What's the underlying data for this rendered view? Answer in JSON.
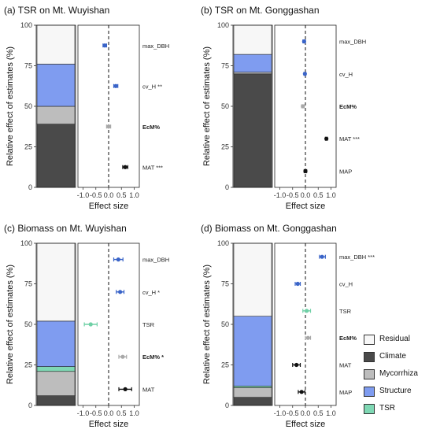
{
  "chart_data": [
    {
      "title": "(a) TSR on Mt. Wuyishan",
      "type": "stacked-bar+forest",
      "ylabel": "Relative effect of estimates (%)",
      "xlabel": "Effect size",
      "ylim": [
        0,
        100
      ],
      "yticks": [
        "0",
        "25",
        "50",
        "75",
        "100"
      ],
      "xlim": [
        -1.2,
        1.2
      ],
      "xticks": [
        "-1.0",
        "-0.5",
        "0.0",
        "0.5",
        "1.0"
      ],
      "stack": [
        {
          "group": "Climate",
          "value": 39
        },
        {
          "group": "Mycorrhiza",
          "value": 11
        },
        {
          "group": "Structure",
          "value": 26
        },
        {
          "group": "Residual",
          "value": 24
        }
      ],
      "estimates": [
        {
          "label": "max_DBH",
          "est": -0.15,
          "lo": -0.22,
          "hi": -0.08,
          "group": "Structure",
          "bold": false
        },
        {
          "label": "cv_H **",
          "est": 0.28,
          "lo": 0.2,
          "hi": 0.36,
          "group": "Structure",
          "bold": false
        },
        {
          "label": "EcM%",
          "est": 0.0,
          "lo": -0.08,
          "hi": 0.08,
          "group": "Mycorrhiza",
          "bold": true
        },
        {
          "label": "MAT ***",
          "est": 0.65,
          "lo": 0.55,
          "hi": 0.75,
          "group": "Climate",
          "bold": false
        }
      ]
    },
    {
      "title": "(b) TSR on Mt. Gonggashan",
      "type": "stacked-bar+forest",
      "ylabel": "Relative effect of estimates (%)",
      "xlabel": "Effect size",
      "ylim": [
        0,
        100
      ],
      "yticks": [
        "0",
        "25",
        "50",
        "75",
        "100"
      ],
      "xlim": [
        -1.2,
        1.2
      ],
      "xticks": [
        "-1.0",
        "-0.5",
        "0.0",
        "0.5",
        "1.0"
      ],
      "stack": [
        {
          "group": "Climate",
          "value": 70
        },
        {
          "group": "Mycorrhiza",
          "value": 1
        },
        {
          "group": "Structure",
          "value": 11
        },
        {
          "group": "Residual",
          "value": 18
        }
      ],
      "estimates": [
        {
          "label": "max_DBH",
          "est": -0.05,
          "lo": -0.1,
          "hi": 0.0,
          "group": "Structure",
          "bold": false
        },
        {
          "label": "cv_H",
          "est": -0.02,
          "lo": -0.06,
          "hi": 0.02,
          "group": "Structure",
          "bold": false
        },
        {
          "label": "EcM%",
          "est": -0.1,
          "lo": -0.15,
          "hi": -0.05,
          "group": "Mycorrhiza",
          "bold": true
        },
        {
          "label": "MAT ***",
          "est": 0.82,
          "lo": 0.78,
          "hi": 0.86,
          "group": "Climate",
          "bold": false
        },
        {
          "label": "MAP",
          "est": 0.0,
          "lo": -0.05,
          "hi": 0.05,
          "group": "Climate",
          "bold": false
        }
      ]
    },
    {
      "title": "(c) Biomass on Mt. Wuyishan",
      "type": "stacked-bar+forest",
      "ylabel": "Relative effect of estimates (%)",
      "xlabel": "Effect size",
      "ylim": [
        0,
        100
      ],
      "yticks": [
        "0",
        "25",
        "50",
        "75",
        "100"
      ],
      "xlim": [
        -1.2,
        1.2
      ],
      "xticks": [
        "-1.0",
        "-0.5",
        "0.0",
        "0.5",
        "1.0"
      ],
      "stack": [
        {
          "group": "Climate",
          "value": 6
        },
        {
          "group": "Mycorrhiza",
          "value": 15
        },
        {
          "group": "TSR",
          "value": 3
        },
        {
          "group": "Structure",
          "value": 28
        },
        {
          "group": "Residual",
          "value": 48
        }
      ],
      "estimates": [
        {
          "label": "max_DBH",
          "est": 0.38,
          "lo": 0.2,
          "hi": 0.56,
          "group": "Structure",
          "bold": false
        },
        {
          "label": "cv_H *",
          "est": 0.45,
          "lo": 0.3,
          "hi": 0.6,
          "group": "Structure",
          "bold": false
        },
        {
          "label": "TSR",
          "est": -0.7,
          "lo": -0.95,
          "hi": -0.45,
          "group": "TSR",
          "bold": false
        },
        {
          "label": "EcM% *",
          "est": 0.55,
          "lo": 0.4,
          "hi": 0.7,
          "group": "Mycorrhiza",
          "bold": true
        },
        {
          "label": "MAT",
          "est": 0.65,
          "lo": 0.4,
          "hi": 0.9,
          "group": "Climate",
          "bold": false
        }
      ]
    },
    {
      "title": "(d) Biomass on Mt. Gonggashan",
      "type": "stacked-bar+forest",
      "ylabel": "Relative effect of estimates (%)",
      "xlabel": "Effect size",
      "ylim": [
        0,
        100
      ],
      "yticks": [
        "0",
        "25",
        "50",
        "75",
        "100"
      ],
      "xlim": [
        -1.2,
        1.2
      ],
      "xticks": [
        "-1.0",
        "-0.5",
        "0.0",
        "0.5",
        "1.0"
      ],
      "stack": [
        {
          "group": "Climate",
          "value": 5
        },
        {
          "group": "Mycorrhiza",
          "value": 6
        },
        {
          "group": "TSR",
          "value": 1
        },
        {
          "group": "Structure",
          "value": 43
        },
        {
          "group": "Residual",
          "value": 45
        }
      ],
      "estimates": [
        {
          "label": "max_DBH ***",
          "est": 0.65,
          "lo": 0.55,
          "hi": 0.78,
          "group": "Structure",
          "bold": false
        },
        {
          "label": "cv_H",
          "est": -0.3,
          "lo": -0.4,
          "hi": -0.2,
          "group": "Structure",
          "bold": false
        },
        {
          "label": "TSR",
          "est": 0.05,
          "lo": -0.1,
          "hi": 0.2,
          "group": "TSR",
          "bold": false
        },
        {
          "label": "EcM%",
          "est": 0.1,
          "lo": 0.0,
          "hi": 0.2,
          "group": "Mycorrhiza",
          "bold": true
        },
        {
          "label": "MAT",
          "est": -0.35,
          "lo": -0.5,
          "hi": -0.2,
          "group": "Climate",
          "bold": false
        },
        {
          "label": "MAP",
          "est": -0.15,
          "lo": -0.28,
          "hi": -0.02,
          "group": "Climate",
          "bold": false
        }
      ]
    }
  ],
  "colors": {
    "Residual": "#f7f7f7",
    "Climate": "#4a4a4a",
    "Mycorrhiza": "#bdbdbd",
    "Structure": "#7f9cf0",
    "TSR": "#7fd8b4",
    "point_Structure": "#3a64c8",
    "point_Climate": "#111111",
    "point_Mycorrhiza": "#a8a8a8",
    "point_TSR": "#6fd0a6"
  },
  "legend": [
    {
      "name": "Residual",
      "color": "#f7f7f7"
    },
    {
      "name": "Climate",
      "color": "#4a4a4a"
    },
    {
      "name": "Mycorrhiza",
      "color": "#bdbdbd"
    },
    {
      "name": "Structure",
      "color": "#7f9cf0"
    },
    {
      "name": "TSR",
      "color": "#7fd8b4"
    }
  ]
}
